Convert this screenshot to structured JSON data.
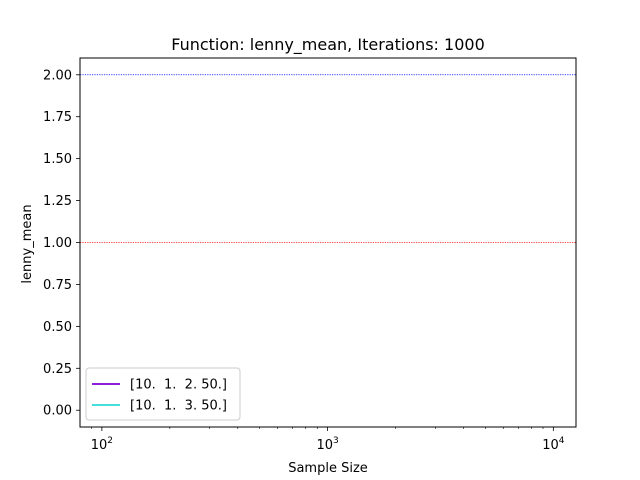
{
  "chart_data": {
    "type": "line",
    "title": "Function: lenny_mean, Iterations: 1000",
    "xlabel": "Sample Size",
    "ylabel": "lenny_mean",
    "xscale": "log",
    "xlim": [
      80,
      12600
    ],
    "ylim": [
      -0.1,
      2.1
    ],
    "yticks": [
      0.0,
      0.25,
      0.5,
      0.75,
      1.0,
      1.25,
      1.5,
      1.75,
      2.0
    ],
    "ytick_labels": [
      "0.00",
      "0.25",
      "0.50",
      "0.75",
      "1.00",
      "1.25",
      "1.50",
      "1.75",
      "2.00"
    ],
    "xticks": [
      100,
      1000,
      10000
    ],
    "xtick_bases": [
      "10",
      "10",
      "10"
    ],
    "xtick_exponents": [
      "2",
      "3",
      "4"
    ],
    "reference_lines": [
      {
        "y": 2.0,
        "color": "#0000ff",
        "style": "dotted"
      },
      {
        "y": 1.0,
        "color": "#ff0000",
        "style": "dotted"
      }
    ],
    "series": [
      {
        "name": "[10.  1.  2. 50.]",
        "color": "#7f00d4",
        "x": [],
        "y": []
      },
      {
        "name": "[10.  1.  3. 50.]",
        "color": "#2cd8d8",
        "x": [],
        "y": []
      }
    ],
    "legend_position": "lower-left",
    "grid": false
  }
}
